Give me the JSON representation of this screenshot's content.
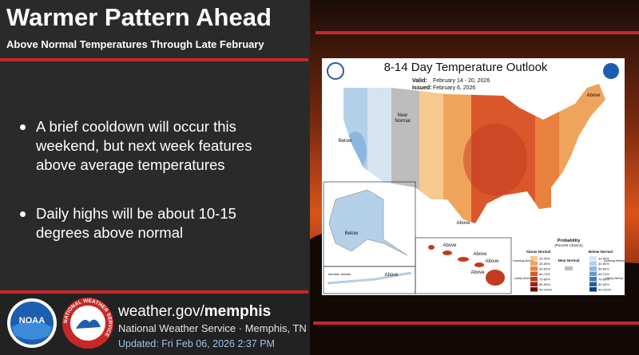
{
  "header": {
    "title": "Warmer Pattern Ahead",
    "subtitle": "Above Normal Temperatures Through Late February"
  },
  "bullets": [
    "A brief cooldown will occur this weekend, but next week features above average temperatures",
    "Daily highs will be about 10-15 degrees above normal"
  ],
  "map": {
    "title": "8-14 Day Temperature Outlook",
    "valid_label": "Valid:",
    "valid": "February 14 - 20, 2026",
    "issued_label": "Issued:",
    "issued": "February 6, 2026",
    "labels": [
      "Above",
      "Near",
      "Normal",
      "Below",
      "Above",
      "Below",
      "Above",
      "Above",
      "Above",
      "Above",
      "Aleutian Islands",
      "Above"
    ],
    "legend": {
      "title": "Probability",
      "subtitle": "(Percent Chance)",
      "above_title": "Above Normal",
      "below_title": "Below Normal",
      "near": "Near Normal",
      "leaning_above": "Leaning Above",
      "likely_above": "Likely Above",
      "leaning_below": "Leaning Below",
      "likely_below": "Likely Below",
      "above_bins": [
        {
          "label": "33-40%",
          "color": "#f6c98e"
        },
        {
          "label": "40-50%",
          "color": "#f0a35c"
        },
        {
          "label": "50-60%",
          "color": "#e8803e"
        },
        {
          "label": "60-70%",
          "color": "#d9572b"
        },
        {
          "label": "70-80%",
          "color": "#c33a1f"
        },
        {
          "label": "80-90%",
          "color": "#a01e12"
        },
        {
          "label": "90-100%",
          "color": "#6e0e0a"
        }
      ],
      "below_bins": [
        {
          "label": "33-40%",
          "color": "#d6e4f2"
        },
        {
          "label": "40-50%",
          "color": "#b4cfe8"
        },
        {
          "label": "50-60%",
          "color": "#8bb7df"
        },
        {
          "label": "60-70%",
          "color": "#5e9bd2"
        },
        {
          "label": "70-80%",
          "color": "#3a7cc0"
        },
        {
          "label": "80-90%",
          "color": "#245ea3"
        },
        {
          "label": "90-100%",
          "color": "#143f7a"
        }
      ]
    }
  },
  "footer": {
    "url_prefix": "weather.gov/",
    "url_bold": "memphis",
    "office": "National Weather Service · Memphis, TN",
    "updated": "Updated: Fri Feb 06, 2026 2:37 PM"
  },
  "logos": {
    "noaa": "NOAA",
    "nws": "NATIONAL WEATHER SERVICE"
  }
}
